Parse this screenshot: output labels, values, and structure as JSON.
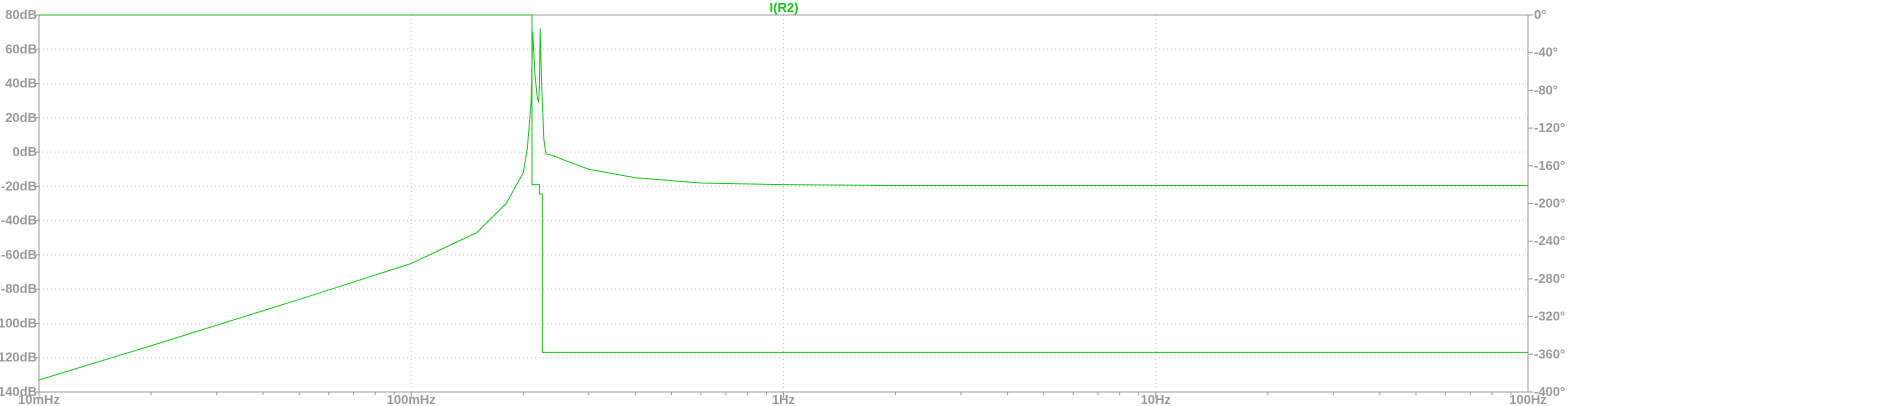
{
  "chart_data": {
    "type": "line",
    "title": "I(R2)",
    "xlabel": "",
    "ylabel": "",
    "y2label": "",
    "x_scale": "log",
    "xlim": [
      0.01,
      100
    ],
    "ylim": [
      -140,
      80
    ],
    "y2lim": [
      -400,
      0
    ],
    "grid": true,
    "series_color": "#19c219",
    "x_ticks": [
      "10mHz",
      "100mHz",
      "1Hz",
      "10Hz",
      "100Hz"
    ],
    "x_tick_values": [
      0.01,
      0.1,
      1,
      10,
      100
    ],
    "y_ticks": [
      "80dB",
      "60dB",
      "40dB",
      "20dB",
      "0dB",
      "-20dB",
      "-40dB",
      "-60dB",
      "-80dB",
      "-100dB",
      "-120dB",
      "-140dB"
    ],
    "y_tick_values": [
      80,
      60,
      40,
      20,
      0,
      -20,
      -40,
      -60,
      -80,
      -100,
      -120,
      -140
    ],
    "y2_ticks": [
      "0°",
      "-40°",
      "-80°",
      "-120°",
      "-160°",
      "-200°",
      "-240°",
      "-280°",
      "-320°",
      "-360°",
      "-400°"
    ],
    "y2_tick_values": [
      0,
      -40,
      -80,
      -120,
      -160,
      -200,
      -240,
      -280,
      -320,
      -360,
      -400
    ],
    "series": [
      {
        "axis": "left",
        "unit": "dB",
        "x": [
          0.01,
          0.02,
          0.05,
          0.1,
          0.15,
          0.18,
          0.2,
          0.205,
          0.21,
          0.212,
          0.215,
          0.218,
          0.22,
          0.221,
          0.222,
          0.224,
          0.227,
          0.23,
          0.24,
          0.26,
          0.3,
          0.4,
          0.6,
          1,
          2,
          5,
          10,
          100
        ],
        "values": [
          -133,
          -113,
          -86,
          -65,
          -47,
          -30,
          -12,
          2,
          30,
          70,
          45,
          32,
          29,
          40,
          72,
          40,
          8,
          -1,
          -2,
          -5,
          -10,
          -15,
          -18,
          -19,
          -19.5,
          -19.5,
          -19.5,
          -19.5
        ]
      },
      {
        "axis": "right",
        "unit": "°",
        "x": [
          0.01,
          0.211,
          0.211,
          0.221,
          0.221,
          0.225,
          0.225,
          100
        ],
        "values": [
          0,
          0,
          -180,
          -180,
          -190,
          -190,
          -358,
          -358
        ]
      }
    ]
  }
}
